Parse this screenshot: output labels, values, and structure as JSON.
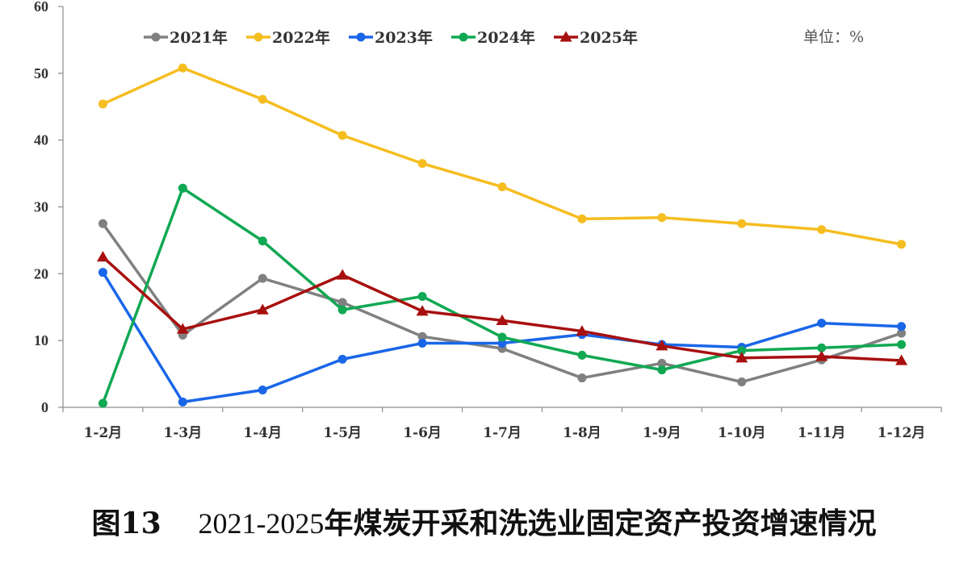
{
  "chart_data": {
    "type": "line",
    "categories": [
      "1-2月",
      "1-3月",
      "1-4月",
      "1-5月",
      "1-6月",
      "1-7月",
      "1-8月",
      "1-9月",
      "1-10月",
      "1-11月",
      "1-12月"
    ],
    "ylim": [
      0,
      60
    ],
    "yticks": [
      "0",
      "10",
      "20",
      "30",
      "40",
      "50",
      "60"
    ],
    "unit": "单位：%",
    "legend_position": "top",
    "grid": false,
    "series": [
      {
        "name": "2021年",
        "color": "#808080",
        "marker": "circle",
        "values": [
          27.5,
          10.8,
          19.3,
          15.7,
          10.6,
          8.8,
          4.4,
          6.6,
          3.8,
          7.1,
          11.1
        ]
      },
      {
        "name": "2022年",
        "color": "#F5BD1F",
        "marker": "circle",
        "values": [
          45.4,
          50.8,
          46.1,
          40.7,
          36.5,
          33.0,
          28.2,
          28.4,
          27.5,
          26.6,
          24.4
        ]
      },
      {
        "name": "2023年",
        "color": "#1A66E8",
        "marker": "circle",
        "values": [
          20.2,
          0.8,
          2.6,
          7.2,
          9.6,
          9.6,
          10.9,
          9.4,
          9.0,
          12.6,
          12.1
        ]
      },
      {
        "name": "2024年",
        "color": "#10A853",
        "marker": "circle",
        "values": [
          0.6,
          32.8,
          24.9,
          14.6,
          16.6,
          10.5,
          7.8,
          5.6,
          8.5,
          8.9,
          9.4
        ]
      },
      {
        "name": "2025年",
        "color": "#A81010",
        "marker": "triangle",
        "values": [
          22.5,
          11.7,
          14.6,
          19.8,
          14.4,
          13.0,
          11.4,
          9.2,
          7.4,
          7.6,
          7.0
        ]
      }
    ]
  },
  "caption": {
    "figure_no": "图13",
    "range": "2021-2025",
    "title": "年煤炭开采和洗选业固定资产投资增速情况"
  }
}
